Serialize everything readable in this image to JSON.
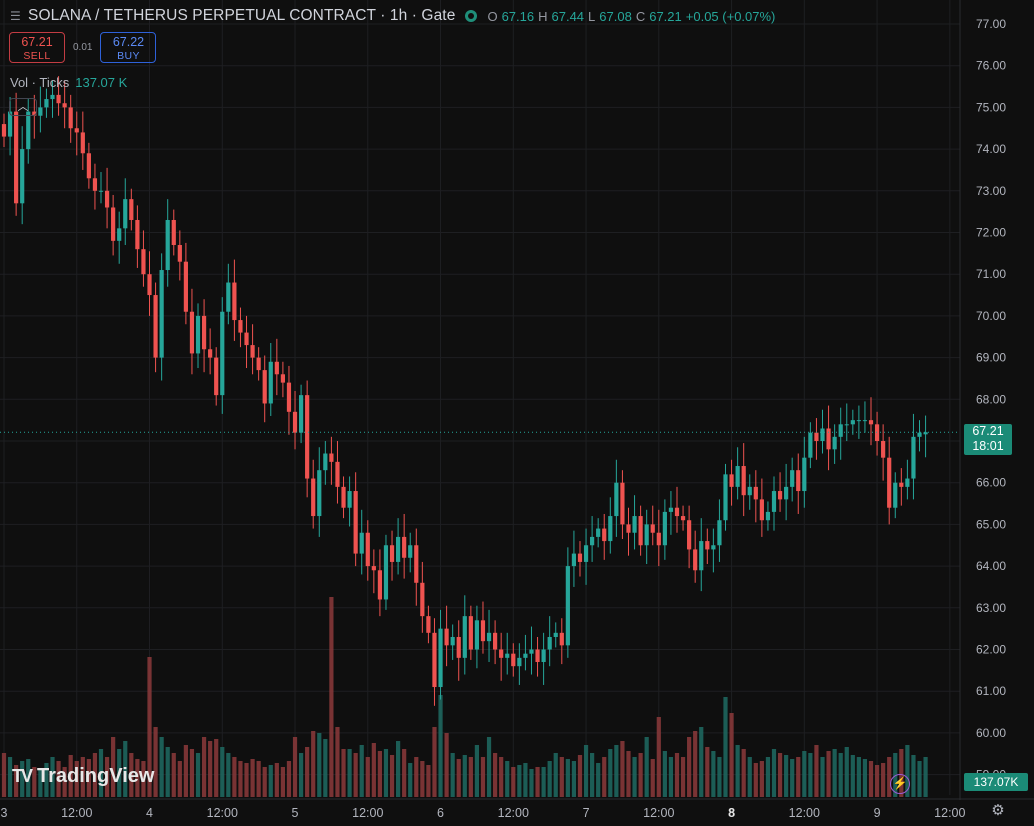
{
  "header": {
    "menu_icon": "menu-icon",
    "title": "SOLANA / TETHERUS PERPETUAL CONTRACT · 1h · Gate",
    "status_icon": "market-open-dot-icon",
    "ohlc": {
      "o_label": "O",
      "o": "67.16",
      "h_label": "H",
      "h": "67.44",
      "l_label": "L",
      "l": "67.08",
      "c_label": "C",
      "c": "67.21",
      "change": "+0.05 (+0.07%)"
    }
  },
  "trade": {
    "sell_price": "67.21",
    "sell_label": "SELL",
    "spread": "0.01",
    "buy_price": "67.22",
    "buy_label": "BUY"
  },
  "volume_legend": {
    "name": "Vol · Ticks",
    "value": "137.07 K"
  },
  "collapse_icon": "chevron-up-icon",
  "price_tag": {
    "price": "67.21",
    "countdown": "18:01"
  },
  "volume_tag": "137.07K",
  "logo_text": "TradingView",
  "logo_mark": "TV",
  "colors": {
    "up": "#26a69a",
    "down": "#ef5350",
    "bg": "#0f0f0f",
    "grid": "#1e1f22",
    "axis_text": "#b2b5be",
    "tag": "#1b8b77"
  },
  "chart_data": {
    "type": "candlestick",
    "title": "SOLANA / TETHERUS PERPETUAL CONTRACT · 1h · Gate",
    "y_ticks": [
      "77.00",
      "76.00",
      "75.00",
      "74.00",
      "73.00",
      "72.00",
      "71.00",
      "70.00",
      "69.00",
      "68.00",
      "67.00",
      "66.00",
      "65.00",
      "64.00",
      "63.00",
      "62.00",
      "61.00",
      "60.00",
      "59.00"
    ],
    "ylim": [
      58.5,
      77.4
    ],
    "x_ticks": [
      {
        "label": "3",
        "t": 0,
        "bold": false
      },
      {
        "label": "12:00",
        "t": 12,
        "bold": false
      },
      {
        "label": "4",
        "t": 24,
        "bold": false
      },
      {
        "label": "12:00",
        "t": 36,
        "bold": false
      },
      {
        "label": "5",
        "t": 48,
        "bold": false
      },
      {
        "label": "12:00",
        "t": 60,
        "bold": false
      },
      {
        "label": "6",
        "t": 72,
        "bold": false
      },
      {
        "label": "12:00",
        "t": 84,
        "bold": false
      },
      {
        "label": "7",
        "t": 96,
        "bold": false
      },
      {
        "label": "12:00",
        "t": 108,
        "bold": false
      },
      {
        "label": "8",
        "t": 120,
        "bold": true
      },
      {
        "label": "12:00",
        "t": 132,
        "bold": false
      },
      {
        "label": "9",
        "t": 144,
        "bold": false
      },
      {
        "label": "12:00",
        "t": 156,
        "bold": false
      }
    ],
    "hours_per_candle": 1,
    "first_candle_t": 0,
    "closes": [
      74.3,
      74.9,
      72.7,
      74.0,
      74.9,
      74.8,
      75.0,
      75.2,
      75.3,
      75.1,
      75.0,
      74.5,
      74.4,
      73.9,
      73.3,
      73.0,
      73.0,
      72.6,
      71.8,
      72.1,
      72.8,
      72.3,
      71.6,
      71.0,
      70.5,
      69.0,
      71.1,
      72.3,
      71.7,
      71.3,
      70.1,
      69.1,
      70.0,
      69.2,
      69.0,
      68.1,
      70.1,
      70.8,
      69.9,
      69.6,
      69.3,
      69.0,
      68.7,
      67.9,
      68.9,
      68.6,
      68.4,
      67.7,
      67.2,
      68.1,
      66.1,
      65.2,
      66.3,
      66.7,
      66.5,
      65.9,
      65.4,
      65.8,
      64.3,
      64.8,
      64.0,
      63.9,
      63.2,
      64.5,
      64.1,
      64.7,
      64.2,
      64.5,
      63.6,
      62.8,
      62.4,
      61.1,
      62.5,
      62.1,
      62.3,
      61.8,
      62.8,
      62.0,
      62.7,
      62.2,
      62.4,
      62.0,
      61.8,
      61.9,
      61.6,
      61.8,
      61.9,
      62.0,
      61.7,
      62.0,
      62.3,
      62.4,
      62.1,
      64.0,
      64.3,
      64.1,
      64.5,
      64.7,
      64.9,
      64.6,
      65.2,
      66.0,
      65.0,
      64.8,
      65.2,
      64.5,
      65.0,
      64.8,
      64.5,
      65.3,
      65.4,
      65.2,
      65.1,
      64.4,
      63.9,
      64.6,
      64.4,
      64.5,
      65.1,
      66.2,
      65.9,
      66.4,
      65.7,
      65.9,
      65.6,
      65.1,
      65.3,
      65.8,
      65.6,
      65.9,
      66.3,
      65.8,
      66.6,
      67.2,
      67.0,
      67.3,
      66.8,
      67.1,
      67.4,
      67.4,
      67.5,
      67.5,
      67.5,
      67.4,
      67.0,
      66.6,
      65.4,
      66.0,
      65.9,
      66.1,
      67.1,
      67.2,
      67.21
    ],
    "opens": [
      74.6,
      74.3,
      74.9,
      72.7,
      74.0,
      74.9,
      74.8,
      75.0,
      75.2,
      75.3,
      75.1,
      75.0,
      74.5,
      74.4,
      73.9,
      73.3,
      73.0,
      73.0,
      72.6,
      71.8,
      72.1,
      72.8,
      72.3,
      71.6,
      71.0,
      70.5,
      69.0,
      71.1,
      72.3,
      71.7,
      71.3,
      70.1,
      69.1,
      70.0,
      69.2,
      69.0,
      68.1,
      70.1,
      70.8,
      69.9,
      69.6,
      69.3,
      69.0,
      68.7,
      67.9,
      68.9,
      68.6,
      68.4,
      67.7,
      67.2,
      68.1,
      66.1,
      65.2,
      66.3,
      66.7,
      66.5,
      65.9,
      65.4,
      65.8,
      64.3,
      64.8,
      64.0,
      63.9,
      63.2,
      64.5,
      64.1,
      64.7,
      64.2,
      64.5,
      63.6,
      62.8,
      62.4,
      61.1,
      62.5,
      62.1,
      62.3,
      61.8,
      62.8,
      62.0,
      62.7,
      62.2,
      62.4,
      62.0,
      61.8,
      61.9,
      61.6,
      61.8,
      61.9,
      62.0,
      61.7,
      62.0,
      62.3,
      62.4,
      62.1,
      64.0,
      64.3,
      64.1,
      64.5,
      64.7,
      64.9,
      64.6,
      65.2,
      66.0,
      65.0,
      64.8,
      65.2,
      64.5,
      65.0,
      64.8,
      64.5,
      65.3,
      65.4,
      65.2,
      65.1,
      64.4,
      63.9,
      64.6,
      64.4,
      64.5,
      65.1,
      66.2,
      65.9,
      66.4,
      65.7,
      65.9,
      65.6,
      65.1,
      65.3,
      65.8,
      65.6,
      65.9,
      66.3,
      65.8,
      66.6,
      67.2,
      67.0,
      67.3,
      66.8,
      67.1,
      67.4,
      67.4,
      67.5,
      67.5,
      67.5,
      67.4,
      67.0,
      66.6,
      65.4,
      66.0,
      65.9,
      66.1,
      67.1,
      67.16
    ],
    "volume": [
      44,
      40,
      32,
      36,
      38,
      30,
      28,
      34,
      40,
      36,
      30,
      42,
      36,
      40,
      38,
      44,
      48,
      40,
      60,
      48,
      56,
      44,
      38,
      36,
      140,
      70,
      60,
      50,
      44,
      36,
      52,
      48,
      44,
      60,
      56,
      58,
      50,
      44,
      40,
      36,
      34,
      38,
      36,
      30,
      32,
      34,
      30,
      36,
      60,
      44,
      50,
      66,
      64,
      58,
      200,
      70,
      48,
      48,
      44,
      52,
      40,
      54,
      46,
      48,
      42,
      56,
      48,
      34,
      40,
      36,
      32,
      70,
      102,
      64,
      44,
      38,
      42,
      40,
      52,
      40,
      60,
      44,
      40,
      36,
      30,
      32,
      34,
      28,
      30,
      30,
      36,
      44,
      40,
      38,
      36,
      42,
      52,
      44,
      34,
      40,
      48,
      52,
      56,
      46,
      40,
      44,
      60,
      38,
      80,
      46,
      40,
      44,
      40,
      60,
      66,
      70,
      50,
      46,
      40,
      100,
      84,
      52,
      48,
      40,
      34,
      36,
      40,
      48,
      44,
      42,
      38,
      40,
      46,
      44,
      52,
      40,
      46,
      48,
      44,
      50,
      42,
      40,
      38,
      36,
      32,
      34,
      40,
      44,
      48,
      52,
      42,
      36,
      40
    ],
    "vol_max": 205,
    "last_price": 67.21
  }
}
